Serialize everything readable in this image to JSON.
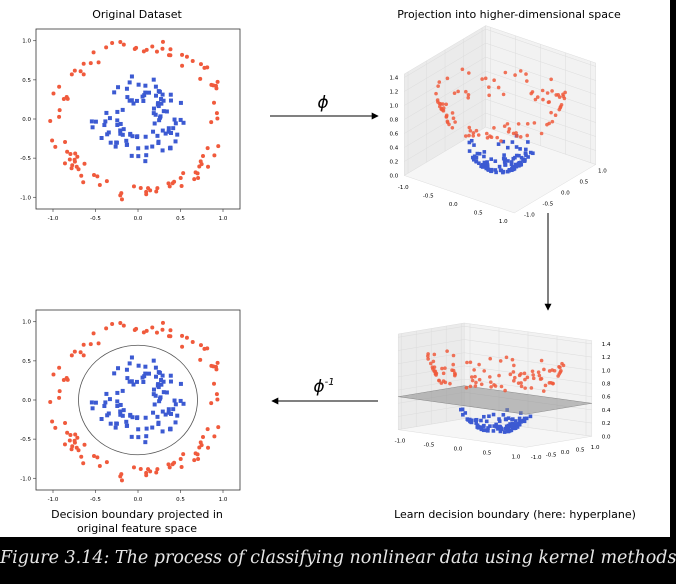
{
  "panels": {
    "top_left": {
      "title": "Original Dataset"
    },
    "top_right": {
      "title": "Projection into higher-dimensional space"
    },
    "bottom_left": {
      "title_line1": "Decision boundary projected in",
      "title_line2": "original feature space"
    },
    "bottom_right": {
      "title": "Learn decision boundary (here: hyperplane)"
    }
  },
  "arrows": {
    "phi_label": "ϕ",
    "phi_inverse_base": "ϕ",
    "phi_inverse_superscript": "-1"
  },
  "colors": {
    "outer_class": "#f05a3c",
    "inner_class": "#3c5ad2",
    "hyperplane": "#8c8c8c",
    "caption_text": "#e6e6e6"
  },
  "chart_data": [
    {
      "type": "scatter",
      "name_ref": "top_left",
      "xlim": [
        -1.2,
        1.2
      ],
      "ylim": [
        -1.15,
        1.15
      ],
      "xticks": [
        "-1.0",
        "-0.5",
        "0.0",
        "0.5",
        "1.0"
      ],
      "yticks": [
        "1.0",
        "0.5",
        "0.0",
        "-0.5",
        "-1.0"
      ],
      "classes": [
        {
          "shape": "circle",
          "color": "outer_class",
          "radius_range": [
            0.85,
            1.05
          ],
          "count": 100
        },
        {
          "shape": "square",
          "color": "inner_class",
          "radius_range": [
            0.2,
            0.55
          ],
          "count": 100
        }
      ]
    },
    {
      "type": "scatter",
      "name_ref": "bottom_left",
      "xlim": [
        -1.2,
        1.2
      ],
      "ylim": [
        -1.15,
        1.15
      ],
      "xticks": [
        "-1.0",
        "-0.5",
        "0.0",
        "0.5",
        "1.0"
      ],
      "yticks": [
        "1.0",
        "0.5",
        "0.0",
        "-0.5",
        "-1.0"
      ],
      "decision_boundary": {
        "shape": "circle",
        "radius": 0.7
      },
      "classes": [
        {
          "shape": "circle",
          "color": "outer_class",
          "radius_range": [
            0.85,
            1.05
          ],
          "count": 100
        },
        {
          "shape": "square",
          "color": "inner_class",
          "radius_range": [
            0.2,
            0.55
          ],
          "count": 100
        }
      ]
    },
    {
      "type": "scatter",
      "name_ref": "top_right",
      "projection": "3d",
      "z_function": "x^2 + y^2",
      "xticks": [
        "-1.0",
        "-0.5",
        "0.0",
        "0.5",
        "1.0"
      ],
      "yticks": [
        "-1.0",
        "-0.5",
        "0.0",
        "0.5",
        "1.0"
      ],
      "zticks": [
        "1.4",
        "1.2",
        "1.0",
        "0.8",
        "0.6",
        "0.4",
        "0.2",
        "0.0"
      ]
    },
    {
      "type": "scatter",
      "name_ref": "bottom_right",
      "projection": "3d",
      "z_function": "x^2 + y^2",
      "hyperplane_z": 0.5,
      "xticks": [
        "-1.0",
        "-0.5",
        "0.0",
        "0.5",
        "1.0"
      ],
      "yticks": [
        "-1.0",
        "-0.5",
        "0.0",
        "0.5",
        "1.0"
      ],
      "zticks": [
        "1.4",
        "1.2",
        "1.0",
        "0.8",
        "0.6",
        "0.4",
        "0.2",
        "0.0"
      ]
    }
  ],
  "caption": "Figure 3.14: The process of classifying nonlinear data using kernel methods"
}
